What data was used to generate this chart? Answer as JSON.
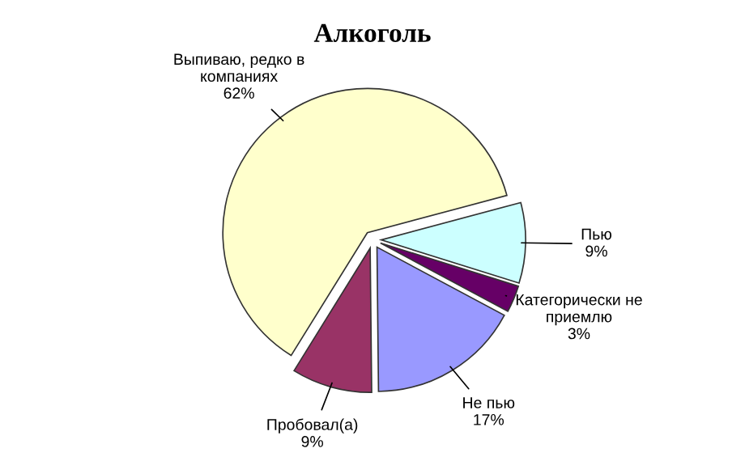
{
  "chart_data": {
    "type": "pie",
    "title": "Алкоголь",
    "categories": [
      "Выпиваю, редко в\nкомпаниях",
      "Пью",
      "Категорически не\nприемлю",
      "Не пью",
      "Пробовал(а)"
    ],
    "values": [
      62,
      9,
      3,
      17,
      9
    ],
    "value_labels": [
      "62%",
      "9%",
      "3%",
      "17%",
      "9%"
    ],
    "colors": [
      "#ffffcc",
      "#ccffff",
      "#660066",
      "#9999ff",
      "#993366"
    ],
    "legend": false
  }
}
